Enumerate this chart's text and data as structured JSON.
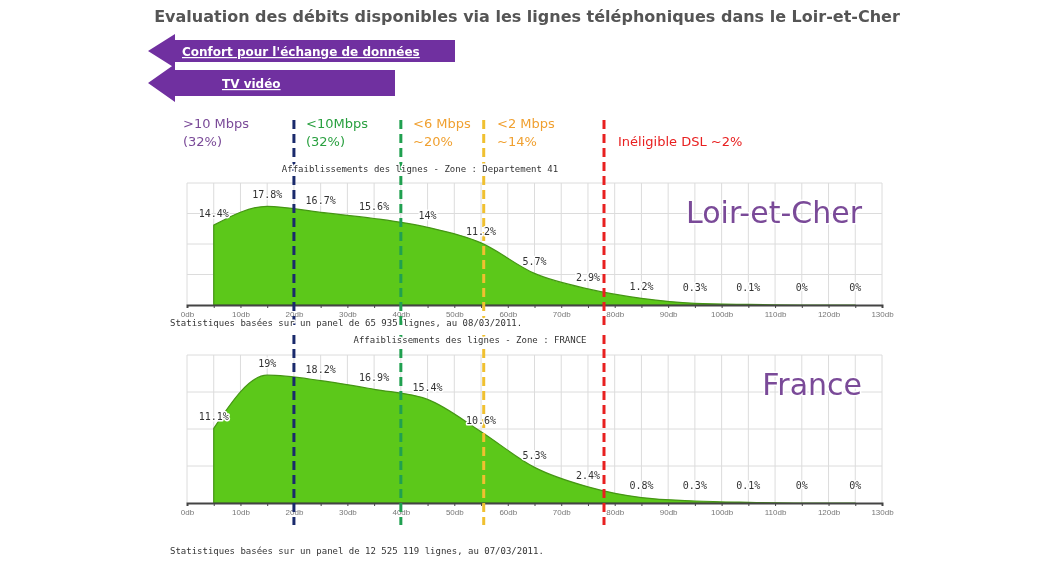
{
  "chart_data": [
    {
      "type": "area",
      "title": "Evaluation des débits disponibles via les lignes téléphoniques dans le Loir-et-Cher",
      "subtitle": "Affaiblissements des lignes - Zone : Departement 41",
      "x": [
        5,
        15,
        25,
        35,
        45,
        55,
        65,
        75,
        85,
        95,
        105,
        115,
        125
      ],
      "series": [
        {
          "name": "Loir-et-Cher",
          "color": "#5cc81a",
          "values": [
            14.4,
            17.8,
            16.7,
            15.6,
            14,
            11.2,
            5.7,
            2.9,
            1.2,
            0.3,
            0.1,
            0,
            0
          ],
          "value_labels": [
            "14.4%",
            "17.8%",
            "16.7%",
            "15.6%",
            "14%",
            "11.2%",
            "5.7%",
            "2.9%",
            "1.2%",
            "0.3%",
            "0.1%",
            "0%",
            "0%"
          ]
        }
      ],
      "xlim": [
        0,
        130
      ],
      "xticks": [
        {
          "value": 0,
          "label": "0db"
        },
        {
          "value": 5,
          "label": null
        },
        {
          "value": 10,
          "label": "10db"
        },
        {
          "value": 15,
          "label": null
        },
        {
          "value": 20,
          "label": "20db"
        },
        {
          "value": 25,
          "label": null
        },
        {
          "value": 30,
          "label": "30db"
        },
        {
          "value": 35,
          "label": null
        },
        {
          "value": 40,
          "label": "40db"
        },
        {
          "value": 45,
          "label": null
        },
        {
          "value": 50,
          "label": "50db"
        },
        {
          "value": 55,
          "label": null
        },
        {
          "value": 60,
          "label": "60db"
        },
        {
          "value": 65,
          "label": null
        },
        {
          "value": 70,
          "label": "70db"
        },
        {
          "value": 75,
          "label": null
        },
        {
          "value": 80,
          "label": "80db"
        },
        {
          "value": 85,
          "label": null
        },
        {
          "value": 90,
          "label": "90db"
        },
        {
          "value": 95,
          "label": null
        },
        {
          "value": 100,
          "label": "100db"
        },
        {
          "value": 105,
          "label": null
        },
        {
          "value": 110,
          "label": "110db"
        },
        {
          "value": 115,
          "label": null
        },
        {
          "value": 120,
          "label": "120db"
        },
        {
          "value": 125,
          "label": null
        },
        {
          "value": 130,
          "label": "130db"
        }
      ],
      "ylim": [
        0,
        22
      ],
      "yticks": [
        {
          "value": 5.5,
          "label": null
        },
        {
          "value": 11,
          "label": null
        },
        {
          "value": 16.5,
          "label": null
        },
        {
          "value": 22,
          "label": null
        }
      ],
      "tick_labels": "x",
      "grid": true,
      "ref_lines": [
        {
          "axis": "x",
          "value": 20,
          "color": "#1a2a6c",
          "line_style": "dashed"
        },
        {
          "axis": "x",
          "value": 40,
          "color": "#20a050",
          "line_style": "dashed"
        },
        {
          "axis": "x",
          "value": 55.5,
          "color": "#f0c030",
          "line_style": "dashed"
        },
        {
          "axis": "x",
          "value": 78,
          "color": "#e82020",
          "line_style": "dashed"
        }
      ],
      "annotations": [
        "Statistiques basées sur un panel de 65 935 lignes, au 08/03/2011.",
        "Confort pour l'échange de données",
        "TV vidéo",
        ">10 Mbps\n(32%)",
        "<10Mbps\n(32%)",
        "<6 Mbps\n~20%",
        "<2 Mbps\n~14%",
        "Inéligible DSL ~2%"
      ]
    },
    {
      "type": "area",
      "title": "Affaiblissements des lignes - Zone : FRANCE",
      "x": [
        5,
        15,
        25,
        35,
        45,
        55,
        65,
        75,
        85,
        95,
        105,
        115,
        125
      ],
      "series": [
        {
          "name": "France",
          "color": "#5cc81a",
          "values": [
            11.1,
            19,
            18.2,
            16.9,
            15.4,
            10.6,
            5.3,
            2.4,
            0.8,
            0.3,
            0.1,
            0,
            0
          ],
          "value_labels": [
            "11.1%",
            "19%",
            "18.2%",
            "16.9%",
            "15.4%",
            "10.6%",
            "5.3%",
            "2.4%",
            "0.8%",
            "0.3%",
            "0.1%",
            "0%",
            "0%"
          ]
        }
      ],
      "xlim": [
        0,
        130
      ],
      "xticks": [
        {
          "value": 0,
          "label": "0db"
        },
        {
          "value": 5,
          "label": null
        },
        {
          "value": 10,
          "label": "10db"
        },
        {
          "value": 15,
          "label": null
        },
        {
          "value": 20,
          "label": "20db"
        },
        {
          "value": 25,
          "label": null
        },
        {
          "value": 30,
          "label": "30db"
        },
        {
          "value": 35,
          "label": null
        },
        {
          "value": 40,
          "label": "40db"
        },
        {
          "value": 45,
          "label": null
        },
        {
          "value": 50,
          "label": "50db"
        },
        {
          "value": 55,
          "label": null
        },
        {
          "value": 60,
          "label": "60db"
        },
        {
          "value": 65,
          "label": null
        },
        {
          "value": 70,
          "label": "70db"
        },
        {
          "value": 75,
          "label": null
        },
        {
          "value": 80,
          "label": "80db"
        },
        {
          "value": 85,
          "label": null
        },
        {
          "value": 90,
          "label": "90db"
        },
        {
          "value": 95,
          "label": null
        },
        {
          "value": 100,
          "label": "100db"
        },
        {
          "value": 105,
          "label": null
        },
        {
          "value": 110,
          "label": "110db"
        },
        {
          "value": 115,
          "label": null
        },
        {
          "value": 120,
          "label": "120db"
        },
        {
          "value": 125,
          "label": null
        },
        {
          "value": 130,
          "label": "130db"
        }
      ],
      "ylim": [
        0,
        22
      ],
      "yticks": [
        {
          "value": 5.5,
          "label": null
        },
        {
          "value": 11,
          "label": null
        },
        {
          "value": 16.5,
          "label": null
        },
        {
          "value": 22,
          "label": null
        }
      ],
      "tick_labels": "x",
      "grid": true,
      "ref_lines": [
        {
          "axis": "x",
          "value": 20,
          "color": "#1a2a6c",
          "line_style": "dashed"
        },
        {
          "axis": "x",
          "value": 40,
          "color": "#20a050",
          "line_style": "dashed"
        },
        {
          "axis": "x",
          "value": 55.5,
          "color": "#f0c030",
          "line_style": "dashed"
        },
        {
          "axis": "x",
          "value": 78,
          "color": "#e82020",
          "line_style": "dashed"
        }
      ],
      "annotations": [
        "Statistiques basées sur un panel de 12 525 119 lignes, au 07/03/2011."
      ]
    }
  ]
}
